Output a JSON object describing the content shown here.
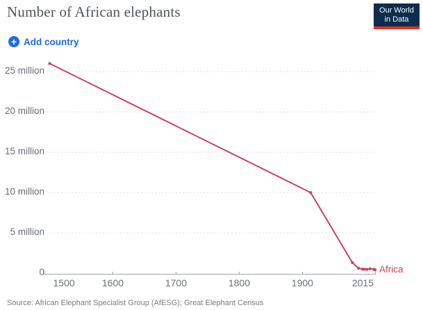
{
  "header": {
    "title": "Number of African elephants",
    "logo": {
      "line1": "Our World",
      "line2": "in Data",
      "bg_color": "#0d2d4f",
      "accent_color": "#e0321e"
    }
  },
  "toolbar": {
    "add_country_label": "Add country",
    "accent_color": "#1d6ce0"
  },
  "footer": {
    "source": "Source: African Elephant Specialist Group (AfESG); Great Elephant Census"
  },
  "chart_data": {
    "type": "line",
    "title": "Number of African elephants",
    "line_color": "#c9435a",
    "grid": "horizontal-dashed",
    "legend_position": "end-of-line",
    "xlim": [
      1500,
      2015
    ],
    "ylim": [
      0,
      26500000
    ],
    "series": [
      {
        "name": "Africa",
        "points": [
          [
            1500,
            26000000
          ],
          [
            1913,
            10000000
          ],
          [
            1979,
            1300000
          ],
          [
            1989,
            600000
          ],
          [
            1995,
            500000
          ],
          [
            1998,
            490000
          ],
          [
            2002,
            470000
          ],
          [
            2007,
            550000
          ],
          [
            2013,
            470000
          ],
          [
            2015,
            420000
          ]
        ]
      }
    ],
    "x_ticks": [
      {
        "year": 1500,
        "label": "1500",
        "align": "left"
      },
      {
        "year": 1600,
        "label": "1600"
      },
      {
        "year": 1700,
        "label": "1700"
      },
      {
        "year": 1800,
        "label": "1800"
      },
      {
        "year": 1900,
        "label": "1900"
      },
      {
        "year": 2015,
        "label": "2015",
        "align": "right"
      }
    ],
    "y_ticks": [
      {
        "value": 0,
        "label": "0"
      },
      {
        "value": 5000000,
        "label": "5 million"
      },
      {
        "value": 10000000,
        "label": "10 million"
      },
      {
        "value": 15000000,
        "label": "15 million"
      },
      {
        "value": 20000000,
        "label": "20 million"
      },
      {
        "value": 25000000,
        "label": "25 million"
      }
    ]
  }
}
